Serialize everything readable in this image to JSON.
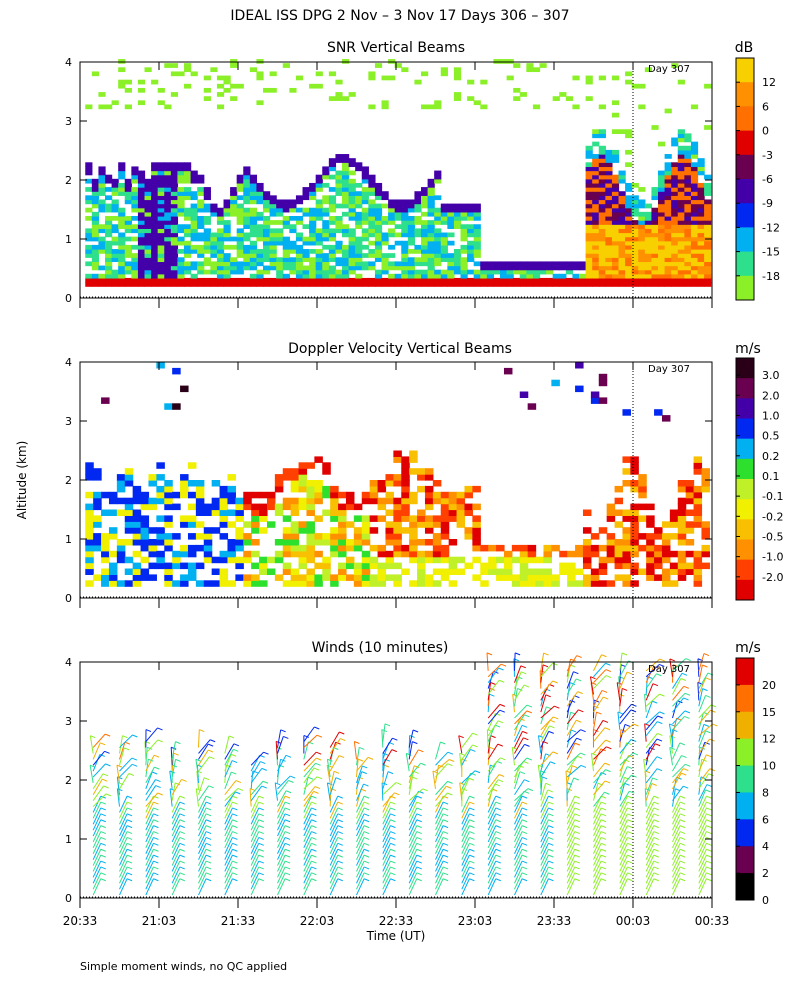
{
  "title": "IDEAL ISS DPG   2 Nov –  3 Nov 17 Days 306 – 307",
  "footnote": "Simple moment winds, no QC applied",
  "ylabel": "Altitude (km)",
  "xlabel": "Time (UT)",
  "x_ticks": [
    "20:33",
    "21:03",
    "21:33",
    "22:03",
    "22:33",
    "23:03",
    "23:33",
    "00:03",
    "00:33"
  ],
  "y_ticks": [
    "0",
    "1",
    "2",
    "3",
    "4"
  ],
  "day_marker": "Day 307",
  "chart_data": [
    {
      "type": "heatmap",
      "title": "SNR Vertical Beams",
      "xlabel": "Time (UT)",
      "ylabel": "Altitude (km)",
      "ylim": [
        0,
        4
      ],
      "xlim_minutes_after_2033": [
        0,
        240
      ],
      "day_boundary_minutes": 210,
      "annotation": "Day 307",
      "colorbar": {
        "unit": "dB",
        "labels": [
          "12",
          "6",
          "0",
          "-3",
          "-6",
          "-9",
          "-12",
          "-15",
          "-18"
        ],
        "colors": [
          "#f8d000",
          "#ff9000",
          "#ff7000",
          "#e00000",
          "#6a0050",
          "#4400a8",
          "#0028f0",
          "#00b0f0",
          "#2ee08c",
          "#8cf028"
        ]
      }
    },
    {
      "type": "heatmap",
      "title": "Doppler Velocity Vertical Beams",
      "xlabel": "Time (UT)",
      "ylabel": "Altitude (km)",
      "ylim": [
        0,
        4
      ],
      "xlim_minutes_after_2033": [
        0,
        240
      ],
      "day_boundary_minutes": 210,
      "annotation": "Day 307",
      "colorbar": {
        "unit": "m/s",
        "labels": [
          "3.0",
          "2.0",
          "1.0",
          "0.5",
          "0.2",
          "0.1",
          "-0.1",
          "-0.2",
          "-0.5",
          "-1.0",
          "-2.0"
        ],
        "colors": [
          "#2a0018",
          "#6a0050",
          "#4400a8",
          "#0028f0",
          "#00b0f0",
          "#2ee02e",
          "#c0f028",
          "#f0f000",
          "#f8c000",
          "#ff9000",
          "#ff4000",
          "#e00000"
        ]
      }
    },
    {
      "type": "scatter",
      "title": "Winds (10 minutes)",
      "xlabel": "Time (UT)",
      "ylabel": "Altitude (km)",
      "ylim": [
        0,
        4
      ],
      "xlim_minutes_after_2033": [
        0,
        240
      ],
      "day_boundary_minutes": 210,
      "annotation": "Day 307",
      "interval_minutes": 10,
      "colorbar": {
        "unit": "m/s",
        "labels": [
          "20",
          "15",
          "12",
          "10",
          "8",
          "6",
          "4",
          "2",
          "0"
        ],
        "colors": [
          "#e00000",
          "#ff7000",
          "#f0b000",
          "#8cf028",
          "#2ee08c",
          "#00b0f0",
          "#0028f0",
          "#6a0050",
          "#000000"
        ]
      }
    }
  ]
}
